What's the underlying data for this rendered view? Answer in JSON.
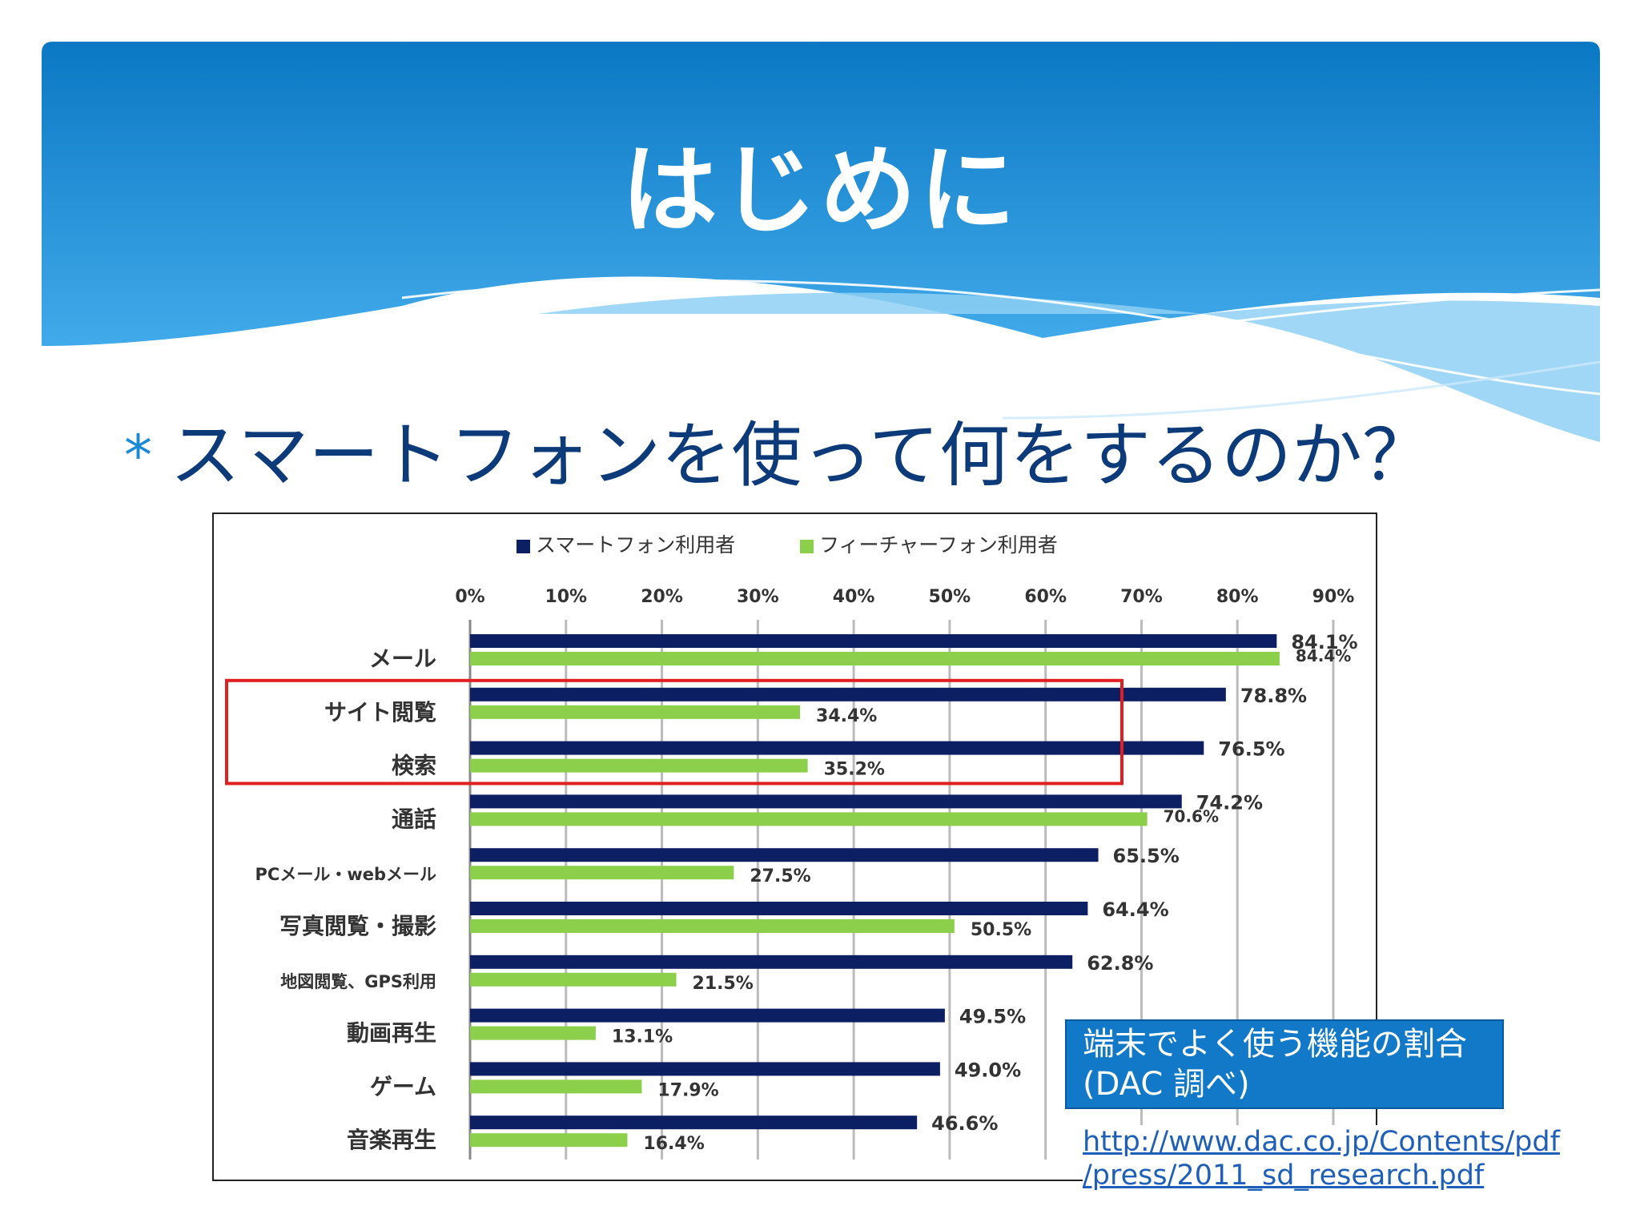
{
  "slide": {
    "title": "はじめに",
    "bullet_marker": "*",
    "bullet_text": "スマートフォンを使って何をするのか？",
    "source_note_line1": "端末でよく使う機能の割合",
    "source_note_line2": "(DAC 調べ)",
    "source_url_line1": "http://www.dac.co.jp/Contents/pdf",
    "source_url_line2": "/press/2011_sd_research.pdf"
  },
  "colors": {
    "header_top": "#0b78c4",
    "header_bottom": "#3aa6e8",
    "smartphone": "#0c1f63",
    "featurephone": "#8ccf4a",
    "highlight": "#e02020",
    "grid": "#bbbbbb"
  },
  "chart_data": {
    "type": "bar",
    "orientation": "horizontal",
    "categories": [
      "メール",
      "サイト閲覧",
      "検索",
      "通話",
      "PCメール・webメール",
      "写真閲覧・撮影",
      "地図閲覧、GPS利用",
      "動画再生",
      "ゲーム",
      "音楽再生"
    ],
    "series": [
      {
        "name": "スマートフォン利用者",
        "values": [
          84.1,
          78.8,
          76.5,
          74.2,
          65.5,
          64.4,
          62.8,
          49.5,
          49.0,
          46.6
        ],
        "labels": [
          "84.1%",
          "78.8%",
          "76.5%",
          "74.2%",
          "65.5%",
          "64.4%",
          "62.8%",
          "49.5%",
          "49.0%",
          "46.6%"
        ]
      },
      {
        "name": "フィーチャーフォン利用者",
        "values": [
          84.4,
          34.4,
          35.2,
          70.6,
          27.5,
          50.5,
          21.5,
          13.1,
          17.9,
          16.4
        ],
        "labels": [
          "84.4%",
          "34.4%",
          "35.2%",
          "70.6%",
          "27.5%",
          "50.5%",
          "21.5%",
          "13.1%",
          "17.9%",
          "16.4%"
        ]
      }
    ],
    "x_ticks": [
      "0%",
      "10%",
      "20%",
      "30%",
      "40%",
      "50%",
      "60%",
      "70%",
      "80%",
      "90%"
    ],
    "xlim": [
      0,
      90
    ],
    "grid": true,
    "legend_position": "top",
    "axis_position": "top",
    "highlighted_categories": [
      "サイト閲覧",
      "検索"
    ]
  }
}
